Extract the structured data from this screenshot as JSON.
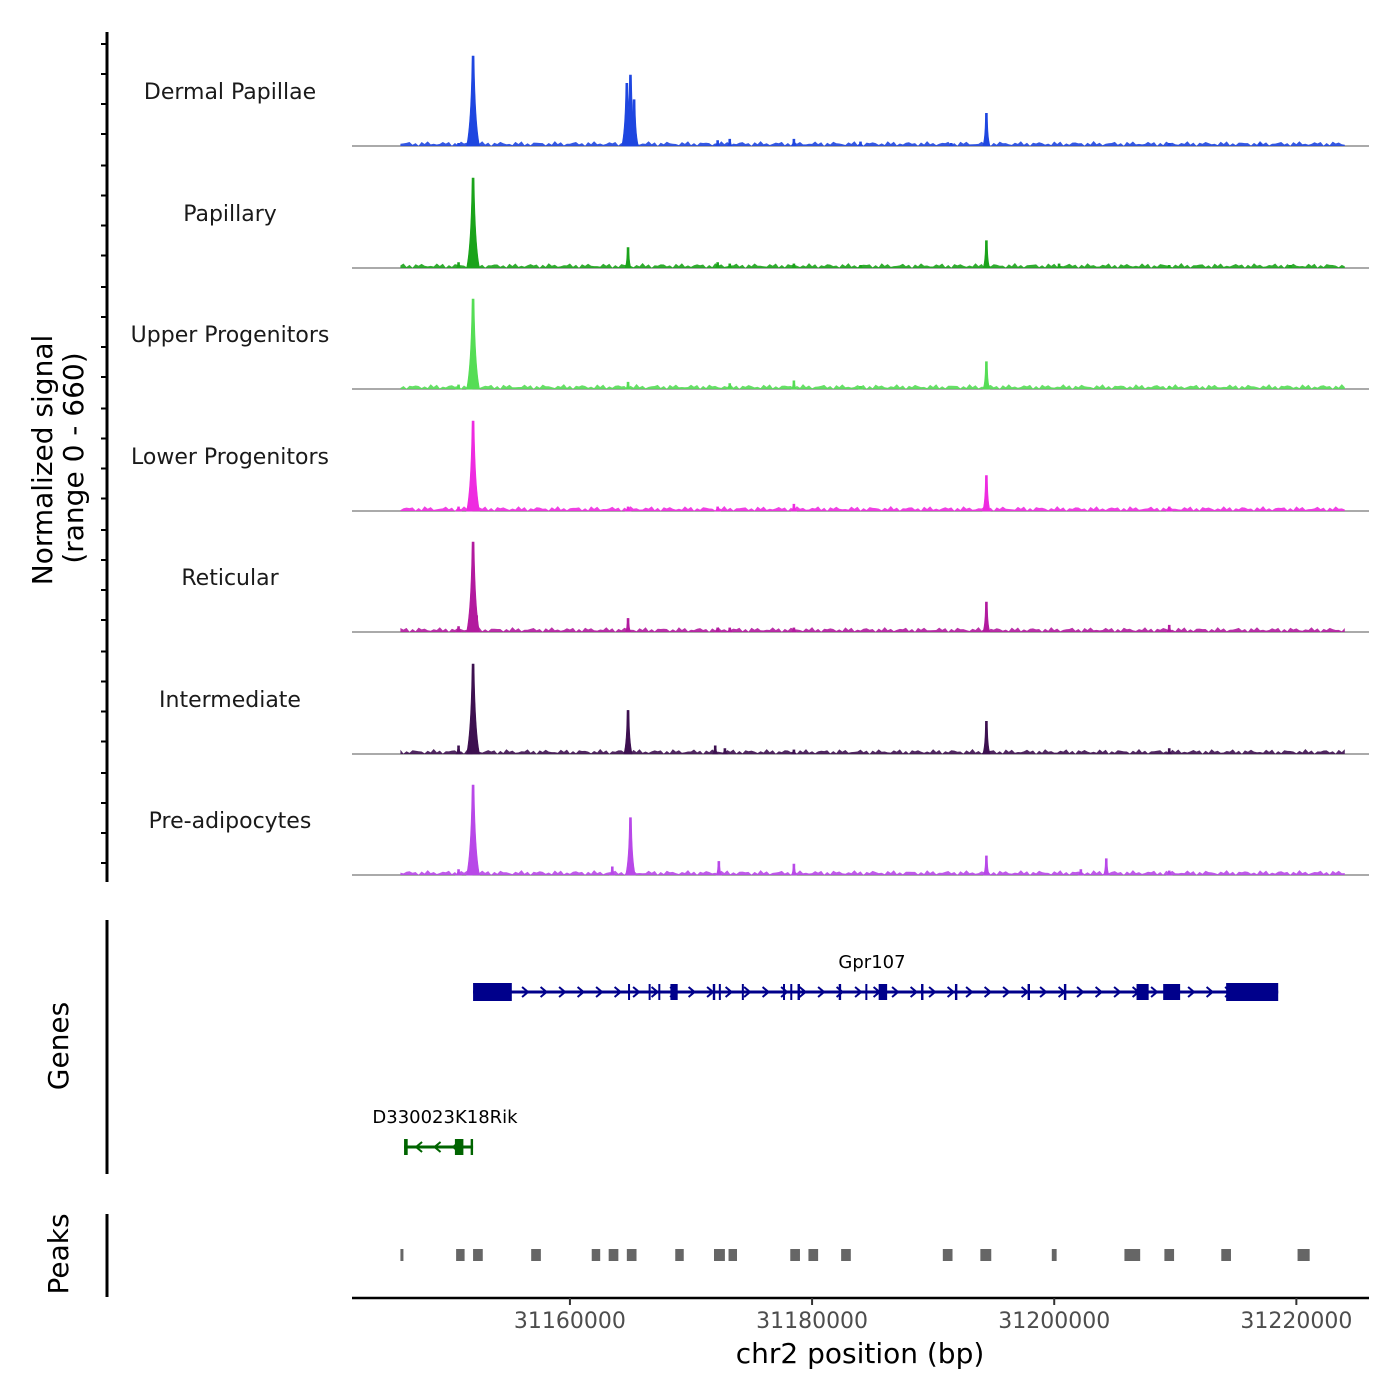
{
  "chart_data": {
    "type": "area",
    "title": "",
    "ylabel": "Normalized signal",
    "ylabel_range": "(range 0 - 660)",
    "ylim": [
      0,
      660
    ],
    "xlabel": "chr2 position (bp)",
    "xlim": [
      31142000,
      31226000
    ],
    "xticks": [
      31160000,
      31180000,
      31200000,
      31220000
    ],
    "xtick_labels": [
      "31160000",
      "31180000",
      "31200000",
      "31220000"
    ],
    "series": [
      {
        "name": "Dermal Papillae",
        "color": "#1e46e0",
        "peaks": [
          [
            31152000,
            660
          ],
          [
            31151700,
            60
          ],
          [
            31150800,
            20
          ],
          [
            31164700,
            460
          ],
          [
            31165000,
            520
          ],
          [
            31165300,
            340
          ],
          [
            31172200,
            40
          ],
          [
            31173200,
            50
          ],
          [
            31178500,
            50
          ],
          [
            31184000,
            30
          ],
          [
            31191500,
            20
          ],
          [
            31194400,
            240
          ],
          [
            31209500,
            20
          ],
          [
            31217000,
            20
          ]
        ]
      },
      {
        "name": "Papillary",
        "color": "#1aa31a",
        "peaks": [
          [
            31152000,
            660
          ],
          [
            31151700,
            60
          ],
          [
            31150800,
            40
          ],
          [
            31164800,
            150
          ],
          [
            31172200,
            40
          ],
          [
            31173200,
            30
          ],
          [
            31178500,
            30
          ],
          [
            31184000,
            20
          ],
          [
            31194400,
            200
          ],
          [
            31200400,
            30
          ],
          [
            31209500,
            20
          ],
          [
            31219500,
            20
          ]
        ]
      },
      {
        "name": "Upper Progenitors",
        "color": "#55dd55",
        "peaks": [
          [
            31152000,
            660
          ],
          [
            31151700,
            60
          ],
          [
            31150800,
            30
          ],
          [
            31164800,
            50
          ],
          [
            31173200,
            40
          ],
          [
            31178500,
            60
          ],
          [
            31184000,
            20
          ],
          [
            31194400,
            200
          ],
          [
            31209500,
            20
          ]
        ]
      },
      {
        "name": "Lower Progenitors",
        "color": "#ee2be0",
        "peaks": [
          [
            31152000,
            660
          ],
          [
            31151700,
            60
          ],
          [
            31150800,
            30
          ],
          [
            31164800,
            30
          ],
          [
            31172200,
            30
          ],
          [
            31178500,
            50
          ],
          [
            31194400,
            260
          ],
          [
            31209500,
            30
          ]
        ]
      },
      {
        "name": "Reticular",
        "color": "#b21a9e",
        "peaks": [
          [
            31152000,
            660
          ],
          [
            31152300,
            120
          ],
          [
            31150800,
            40
          ],
          [
            31164800,
            100
          ],
          [
            31172200,
            30
          ],
          [
            31173200,
            30
          ],
          [
            31178500,
            30
          ],
          [
            31194400,
            220
          ],
          [
            31209500,
            50
          ]
        ]
      },
      {
        "name": "Intermediate",
        "color": "#3d1050",
        "peaks": [
          [
            31152000,
            660
          ],
          [
            31151700,
            60
          ],
          [
            31150800,
            60
          ],
          [
            31164800,
            320
          ],
          [
            31172000,
            60
          ],
          [
            31172800,
            40
          ],
          [
            31178500,
            30
          ],
          [
            31194400,
            240
          ],
          [
            31209500,
            40
          ]
        ]
      },
      {
        "name": "Pre-adipocytes",
        "color": "#b848e8",
        "peaks": [
          [
            31152000,
            660
          ],
          [
            31151700,
            80
          ],
          [
            31150800,
            40
          ],
          [
            31163500,
            60
          ],
          [
            31165000,
            420
          ],
          [
            31172300,
            100
          ],
          [
            31178500,
            80
          ],
          [
            31194400,
            140
          ],
          [
            31202200,
            40
          ],
          [
            31204300,
            120
          ],
          [
            31209500,
            30
          ]
        ]
      }
    ]
  },
  "genes": [
    {
      "name": "Gpr107",
      "strand": "+",
      "color": "#00008b",
      "start": 31152000,
      "end": 31218500,
      "exons": [
        [
          31152000,
          31155200
        ],
        [
          31164800,
          31164950
        ],
        [
          31166500,
          31166650
        ],
        [
          31167300,
          31167450
        ],
        [
          31168300,
          31168900
        ],
        [
          31171800,
          31172000
        ],
        [
          31172300,
          31172450
        ],
        [
          31174200,
          31174350
        ],
        [
          31177600,
          31177750
        ],
        [
          31178200,
          31178350
        ],
        [
          31178800,
          31179000
        ],
        [
          31182200,
          31182400
        ],
        [
          31184400,
          31184550
        ],
        [
          31185500,
          31186200
        ],
        [
          31189000,
          31189200
        ],
        [
          31191800,
          31192000
        ],
        [
          31197800,
          31198000
        ],
        [
          31200800,
          31201000
        ],
        [
          31206800,
          31207800
        ],
        [
          31209000,
          31210400
        ],
        [
          31214200,
          31218500
        ]
      ]
    },
    {
      "name": "D330023K18Rik",
      "strand": "-",
      "color": "#006400",
      "start": 31146300,
      "end": 31152000,
      "exons": [
        [
          31146300,
          31146600
        ],
        [
          31150500,
          31151200
        ],
        [
          31151800,
          31152000
        ]
      ]
    }
  ],
  "peaks": {
    "label": "Peaks",
    "color": "#666666",
    "regions": [
      [
        31146000,
        31146200
      ],
      [
        31150600,
        31151300
      ],
      [
        31152000,
        31152800
      ],
      [
        31156800,
        31157600
      ],
      [
        31161800,
        31162500
      ],
      [
        31163200,
        31164000
      ],
      [
        31164700,
        31165500
      ],
      [
        31168700,
        31169400
      ],
      [
        31171900,
        31172800
      ],
      [
        31173100,
        31173800
      ],
      [
        31178200,
        31179000
      ],
      [
        31179700,
        31180500
      ],
      [
        31182400,
        31183200
      ],
      [
        31190800,
        31191600
      ],
      [
        31193900,
        31194800
      ],
      [
        31199800,
        31200200
      ],
      [
        31205800,
        31207100
      ],
      [
        31209100,
        31209900
      ],
      [
        31213800,
        31214600
      ],
      [
        31220100,
        31221100
      ]
    ]
  },
  "genes_label": "Genes"
}
